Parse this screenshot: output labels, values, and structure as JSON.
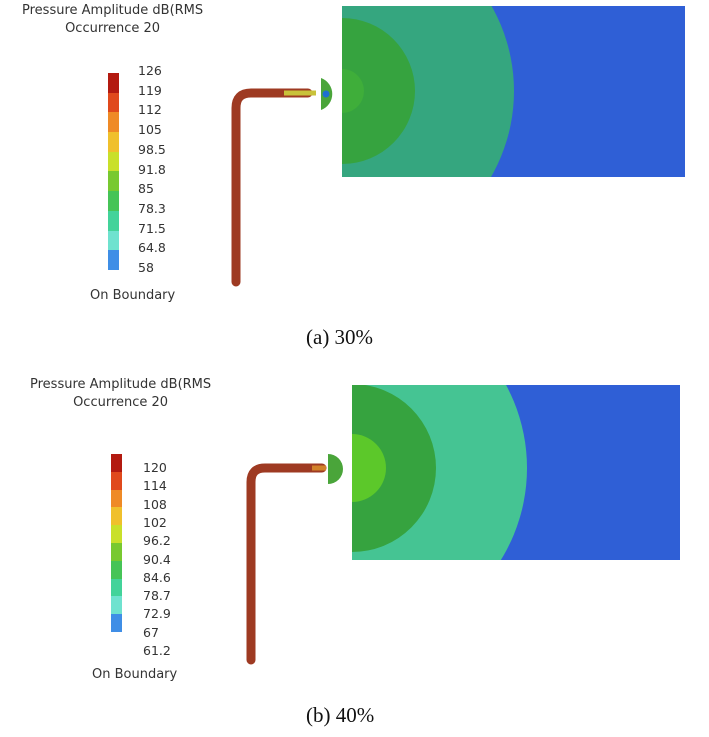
{
  "colors": {
    "scale": [
      "#1e4fd8",
      "#3f8ee6",
      "#6fe2cf",
      "#43d39a",
      "#46c457",
      "#78c930",
      "#c9e02a",
      "#f0c02c",
      "#ef8a26",
      "#e0491c",
      "#b31a10"
    ],
    "far_field": "#2f5fd6",
    "mid_field": "#35a67f",
    "near_field": "#36a33f",
    "pipe": "#9e3a22"
  },
  "panels": [
    {
      "id": "a",
      "legend_title_line1": "Pressure Amplitude dB(RMS",
      "legend_title_line2": "Occurrence 20",
      "ticks": [
        "126",
        "119",
        "112",
        "105",
        "98.5",
        "91.8",
        "85",
        "78.3",
        "71.5",
        "64.8",
        "58"
      ],
      "boundary_label": "On Boundary",
      "caption": "(a) 30%"
    },
    {
      "id": "b",
      "legend_title_line1": "Pressure Amplitude dB(RMS",
      "legend_title_line2": "Occurrence 20",
      "ticks": [
        "120",
        "114",
        "108",
        "102",
        "96.2",
        "90.4",
        "84.6",
        "78.7",
        "72.9",
        "67",
        "61.2"
      ],
      "boundary_label": "On Boundary",
      "caption": "(b) 40%"
    }
  ]
}
